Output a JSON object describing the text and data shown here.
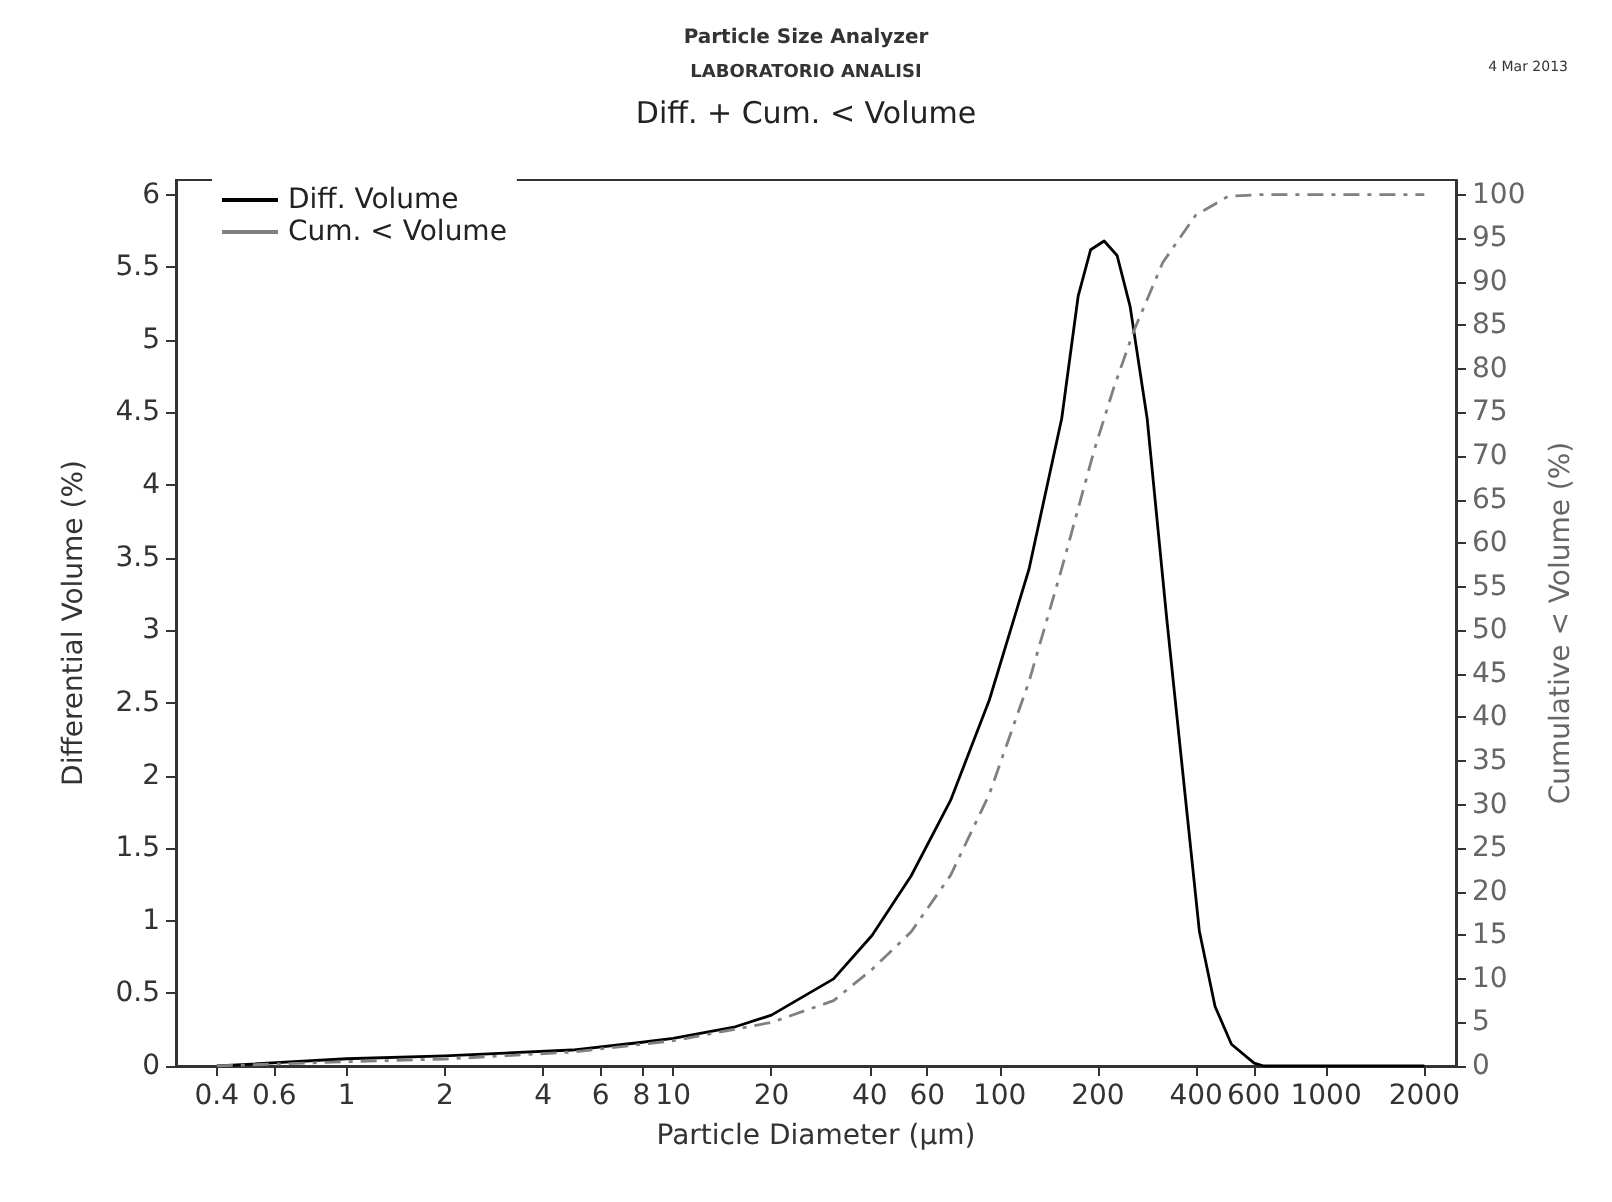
{
  "chart_data": {
    "type": "line",
    "title": "Diff. + Cum. < Volume",
    "annotations": [
      "Particle Size Analyzer",
      "LABORATORIO ANALISI",
      "4 Mar 2013"
    ],
    "xlabel": "Particle Diameter (µm)",
    "ylabel": "Differential Volume (%)",
    "y2label": "Cumulative < Volume (%)",
    "log": "x",
    "xlim": [
      0.3,
      2500
    ],
    "xticks": [
      0.4,
      0.6,
      1,
      2,
      4,
      6,
      8,
      10,
      20,
      40,
      60,
      100,
      200,
      400,
      600,
      1000,
      2000
    ],
    "ylim": [
      0,
      6.1
    ],
    "yticks": [
      0,
      0.5,
      1,
      1.5,
      2,
      2.5,
      3,
      3.5,
      4,
      4.5,
      5,
      5.5,
      6
    ],
    "y2lim": [
      0,
      101.67
    ],
    "y2ticks": [
      0,
      5,
      10,
      15,
      20,
      25,
      30,
      35,
      40,
      45,
      50,
      55,
      60,
      65,
      70,
      75,
      80,
      85,
      90,
      95,
      100
    ],
    "grid": false,
    "legend": "top left",
    "marker": "none",
    "series": [
      {
        "name": "Diff. Volume",
        "color": "#000000",
        "line_style": "solid",
        "x": [
          0.4,
          1,
          2,
          4.9,
          7.8,
          10,
          15.5,
          20,
          31,
          40.7,
          53.6,
          70.8,
          93,
          123,
          155,
          174,
          190,
          209,
          229,
          251,
          283,
          325,
          373,
          409,
          457,
          513,
          602,
          645,
          1000,
          2000
        ],
        "values": [
          0,
          0.05,
          0.07,
          0.11,
          0.16,
          0.19,
          0.27,
          0.35,
          0.6,
          0.9,
          1.31,
          1.83,
          2.52,
          3.42,
          4.46,
          5.3,
          5.62,
          5.68,
          5.58,
          5.23,
          4.46,
          3.08,
          1.79,
          0.93,
          0.41,
          0.15,
          0.02,
          0,
          0,
          0
        ]
      },
      {
        "name": "Cum. < Volume",
        "color": "#808080",
        "line_style": "dashed",
        "axis": "y2",
        "x": [
          0.4,
          1,
          2,
          4.9,
          10,
          20,
          31,
          40.7,
          53.6,
          70.8,
          93,
          123,
          155,
          195,
          224,
          258,
          316,
          398,
          501,
          631,
          2000
        ],
        "values": [
          0,
          0.5,
          0.8,
          1.6,
          2.9,
          5,
          7.5,
          11.1,
          15.4,
          21.9,
          31.2,
          44.1,
          57.1,
          70.7,
          77.9,
          84.4,
          92.2,
          97.6,
          99.8,
          100,
          100
        ]
      }
    ]
  }
}
